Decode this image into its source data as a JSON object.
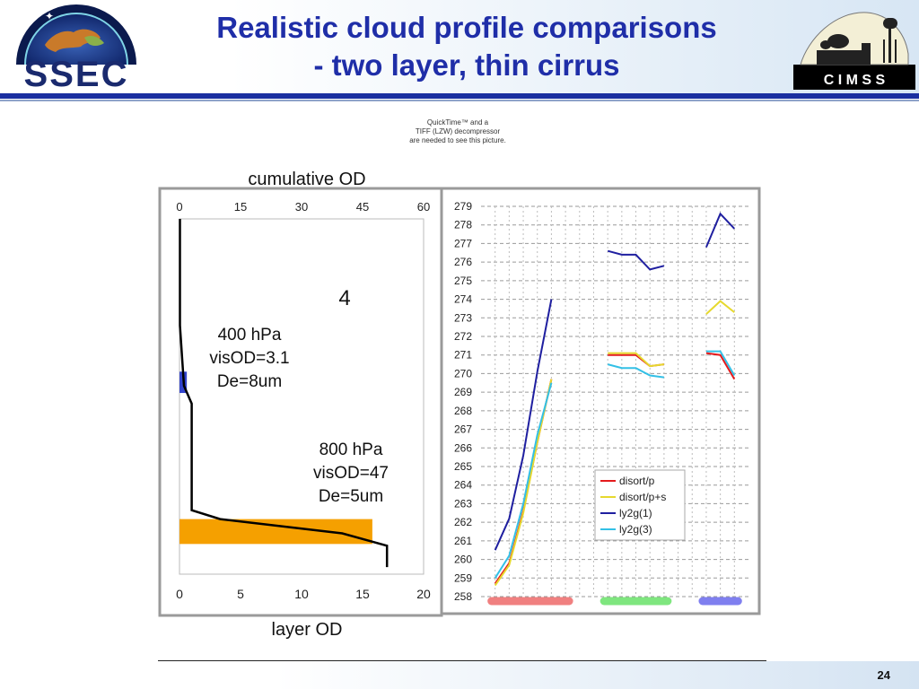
{
  "header": {
    "title_line1": "Realistic cloud profile comparisons",
    "title_line2": "- two layer, thin cirrus",
    "left_logo_text": "SSEC",
    "right_logo_text": "C I M S S"
  },
  "quicktime_notice": [
    "QuickTime™ and a",
    "TIFF (LZW) decompressor",
    "are needed to see this picture."
  ],
  "page_number": "24",
  "chart_data": [
    {
      "type": "line",
      "title": "",
      "top_axis_label": "cumulative OD",
      "bottom_axis_label": "layer OD",
      "top_ticks": [
        "0",
        "15",
        "30",
        "45",
        "60"
      ],
      "bottom_ticks": [
        "0",
        "5",
        "10",
        "15",
        "20"
      ],
      "panel_label": "4",
      "annotations": [
        {
          "lines": [
            "400 hPa",
            "visOD=3.1",
            "De=8um"
          ]
        },
        {
          "lines": [
            "800 hPa",
            "visOD=47",
            "De=5um"
          ]
        }
      ],
      "colors": {
        "cumulative": "#000000",
        "cirrus_layer": "#3344cc",
        "low_cloud_layer": "#f5a000"
      },
      "cumulative_profile": [
        {
          "cum_od": 0.1,
          "level": 0.0
        },
        {
          "cum_od": 0.1,
          "level": 0.3
        },
        {
          "cum_od": 1.1,
          "level": 0.47
        },
        {
          "cum_od": 3.0,
          "level": 0.52
        },
        {
          "cum_od": 3.0,
          "level": 0.82
        },
        {
          "cum_od": 10.0,
          "level": 0.845
        },
        {
          "cum_od": 40.0,
          "level": 0.885
        },
        {
          "cum_od": 51.0,
          "level": 0.92
        },
        {
          "cum_od": 51.0,
          "level": 0.98
        }
      ],
      "layer_od_bands": [
        {
          "layer": "cirrus",
          "layer_od": 0.6,
          "level_range": [
            0.43,
            0.49
          ]
        },
        {
          "layer": "low cloud",
          "layer_od": 15.8,
          "level_range": [
            0.845,
            0.915
          ]
        }
      ]
    },
    {
      "type": "line",
      "title": "",
      "xlabel": "",
      "ylabel": "",
      "ylim": [
        258,
        279
      ],
      "yticks": [
        258,
        259,
        260,
        261,
        262,
        263,
        264,
        265,
        266,
        267,
        268,
        269,
        270,
        271,
        272,
        273,
        274,
        275,
        276,
        277,
        278,
        279
      ],
      "grid": true,
      "legend": "inside lower-right",
      "groups": [
        {
          "color": "#f08080",
          "x": [
            1,
            2,
            3,
            4,
            5,
            6
          ]
        },
        {
          "color": "#7fe67f",
          "x": [
            9,
            10,
            11,
            12,
            13
          ]
        },
        {
          "color": "#7f7fef",
          "x": [
            16,
            17,
            18
          ]
        }
      ],
      "series": [
        {
          "name": "disort/p",
          "color": "#e41a1c",
          "points": [
            [
              1,
              258.7
            ],
            [
              2,
              259.8
            ],
            [
              3,
              262.6
            ],
            [
              4,
              266.3
            ],
            [
              5,
              269.7
            ],
            [
              9,
              271.0
            ],
            [
              10,
              271.0
            ],
            [
              11,
              271.0
            ],
            [
              12,
              270.4
            ],
            [
              13,
              270.5
            ],
            [
              16,
              271.1
            ],
            [
              17,
              271.0
            ],
            [
              18,
              269.7
            ]
          ]
        },
        {
          "name": "disort/p+s",
          "color": "#e6d92e",
          "points": [
            [
              1,
              258.6
            ],
            [
              2,
              259.7
            ],
            [
              3,
              262.5
            ],
            [
              4,
              266.3
            ],
            [
              5,
              269.7
            ],
            [
              9,
              271.1
            ],
            [
              10,
              271.1
            ],
            [
              11,
              271.1
            ],
            [
              12,
              270.4
            ],
            [
              13,
              270.5
            ],
            [
              16,
              273.2
            ],
            [
              17,
              273.9
            ],
            [
              18,
              273.3
            ]
          ]
        },
        {
          "name": "ly2g(1)",
          "color": "#1f1fa0",
          "points": [
            [
              1,
              260.5
            ],
            [
              2,
              262.2
            ],
            [
              3,
              265.6
            ],
            [
              4,
              270.1
            ],
            [
              5,
              274.0
            ],
            [
              9,
              276.6
            ],
            [
              10,
              276.4
            ],
            [
              11,
              276.4
            ],
            [
              12,
              275.6
            ],
            [
              13,
              275.8
            ],
            [
              16,
              276.8
            ],
            [
              17,
              278.6
            ],
            [
              18,
              277.8
            ]
          ]
        },
        {
          "name": "ly2g(3)",
          "color": "#33c0e6",
          "points": [
            [
              1,
              259.0
            ],
            [
              2,
              260.2
            ],
            [
              3,
              263.0
            ],
            [
              4,
              266.7
            ],
            [
              5,
              269.5
            ],
            [
              9,
              270.5
            ],
            [
              10,
              270.3
            ],
            [
              11,
              270.3
            ],
            [
              12,
              269.9
            ],
            [
              13,
              269.8
            ],
            [
              16,
              271.2
            ],
            [
              17,
              271.2
            ],
            [
              18,
              269.9
            ]
          ]
        }
      ]
    }
  ]
}
